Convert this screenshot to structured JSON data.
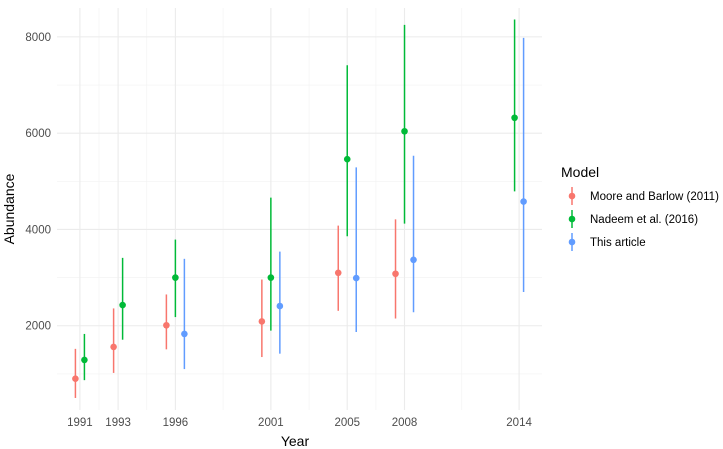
{
  "chart_data": {
    "type": "scatter",
    "title": "",
    "xlabel": "Year",
    "ylabel": "Abundance",
    "x_ticks": [
      1991,
      1993,
      1996,
      2001,
      2005,
      2008,
      2014
    ],
    "y_ticks": [
      2000,
      4000,
      6000,
      8000
    ],
    "xlim": [
      1989.8,
      2015.2
    ],
    "ylim": [
      250,
      8600
    ],
    "grid": true,
    "legend_title": "Model",
    "legend_position": "right",
    "series": [
      {
        "name": "Moore and Barlow (2011)",
        "color": "#F8766D",
        "points": [
          {
            "x": 1991,
            "y": 900,
            "low": 500,
            "high": 1520
          },
          {
            "x": 1993,
            "y": 1560,
            "low": 1020,
            "high": 2360
          },
          {
            "x": 1996,
            "y": 2010,
            "low": 1510,
            "high": 2650
          },
          {
            "x": 2001,
            "y": 2090,
            "low": 1350,
            "high": 2960
          },
          {
            "x": 2005,
            "y": 3100,
            "low": 2310,
            "high": 4080
          },
          {
            "x": 2008,
            "y": 3080,
            "low": 2150,
            "high": 4210
          }
        ]
      },
      {
        "name": "Nadeem et al. (2016)",
        "color": "#00BA38",
        "points": [
          {
            "x": 1991,
            "y": 1290,
            "low": 870,
            "high": 1830
          },
          {
            "x": 1993,
            "y": 2430,
            "low": 1710,
            "high": 3410
          },
          {
            "x": 1996,
            "y": 3000,
            "low": 2180,
            "high": 3790
          },
          {
            "x": 2001,
            "y": 3000,
            "low": 1900,
            "high": 4660
          },
          {
            "x": 2005,
            "y": 5460,
            "low": 3860,
            "high": 7410
          },
          {
            "x": 2008,
            "y": 6040,
            "low": 4120,
            "high": 8250
          },
          {
            "x": 2014,
            "y": 6320,
            "low": 4790,
            "high": 8360
          }
        ]
      },
      {
        "name": "This article",
        "color": "#619CFF",
        "points": [
          {
            "x": 1996,
            "y": 1830,
            "low": 1100,
            "high": 3390
          },
          {
            "x": 2001,
            "y": 2410,
            "low": 1420,
            "high": 3540
          },
          {
            "x": 2005,
            "y": 2990,
            "low": 1870,
            "high": 5290
          },
          {
            "x": 2008,
            "y": 3370,
            "low": 2280,
            "high": 5530
          },
          {
            "x": 2014,
            "y": 4580,
            "low": 2700,
            "high": 7980
          }
        ]
      }
    ]
  }
}
